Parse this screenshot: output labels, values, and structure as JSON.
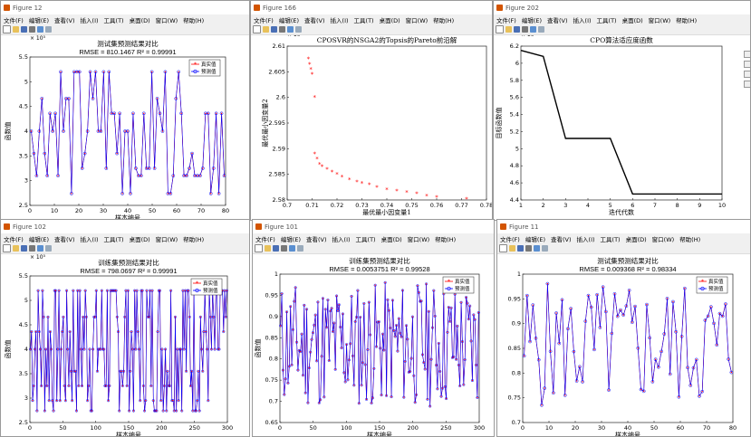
{
  "windows": [
    {
      "id": "w1",
      "title": "Figure 12",
      "plot_title": "测试集预测结果对比",
      "plot_subtitle": "RMSE = 810.1467 R² = 0.99991",
      "xlabel": "样本编号",
      "ylabel": "函数值",
      "exponent": "× 10⁵",
      "legend": [
        "真实值",
        "预测值"
      ],
      "xticks": [
        "0",
        "10",
        "20",
        "30",
        "40",
        "50",
        "60",
        "70",
        "80"
      ],
      "yticks": [
        "2.5",
        "3",
        "3.5",
        "4",
        "4.5",
        "5",
        "5.5"
      ]
    },
    {
      "id": "w2",
      "title": "Figure 166",
      "plot_title": "CPOSVR的NSGA2的Topsis的Pareto前沿解",
      "xlabel": "最优最小因变量1",
      "ylabel": "最优最小因变量2",
      "exponent": "× 10⁵",
      "xticks": [
        "0.7",
        "0.71",
        "0.72",
        "0.73",
        "0.74",
        "0.75",
        "0.76",
        "0.77",
        "0.78"
      ],
      "yticks": [
        "2.58",
        "2.585",
        "2.59",
        "2.595",
        "2.6",
        "2.605",
        "2.61"
      ]
    },
    {
      "id": "w3",
      "title": "Figure 202",
      "plot_title": "CPO算法适应度函数",
      "xlabel": "迭代代数",
      "ylabel": "目标函数值",
      "exponent": "× 10⁻⁵",
      "xticks": [
        "1",
        "2",
        "3",
        "4",
        "5",
        "6",
        "7",
        "8",
        "9",
        "10"
      ],
      "yticks": [
        "4.4",
        "4.6",
        "4.8",
        "5",
        "5.2",
        "5.4",
        "5.6",
        "5.8",
        "6",
        "6.2"
      ]
    },
    {
      "id": "w4",
      "title": "Figure 102",
      "plot_title": "训练集预测结果对比",
      "plot_subtitle": "RMSE = 798.0697 R² = 0.99991",
      "xlabel": "样本编号",
      "ylabel": "函数值",
      "exponent": "× 10⁵",
      "legend": [
        "真实值",
        "预测值"
      ],
      "xticks": [
        "0",
        "50",
        "100",
        "150",
        "200",
        "250",
        "300"
      ],
      "yticks": [
        "2.5",
        "3",
        "3.5",
        "4",
        "4.5",
        "5",
        "5.5"
      ]
    },
    {
      "id": "w5",
      "title": "Figure 101",
      "plot_title": "训练集预测结果对比",
      "plot_subtitle": "RMSE = 0.0053751 R² = 0.99528",
      "xlabel": "样本编号",
      "ylabel": "函数值",
      "legend": [
        "真实值",
        "预测值"
      ],
      "xticks": [
        "0",
        "50",
        "100",
        "150",
        "200",
        "250",
        "300"
      ],
      "yticks": [
        "0.65",
        "0.7",
        "0.75",
        "0.8",
        "0.85",
        "0.9",
        "0.95",
        "1"
      ]
    },
    {
      "id": "w6",
      "title": "Figure 11",
      "plot_title": "测试集预测结果对比",
      "plot_subtitle": "RMSE = 0.009368 R² = 0.98334",
      "xlabel": "样本编号",
      "ylabel": "",
      "legend": [
        "真实值",
        "预测值"
      ],
      "xticks": [
        "0",
        "10",
        "20",
        "30",
        "40",
        "50",
        "60",
        "70",
        "80"
      ],
      "yticks": [
        "0.7",
        "0.75",
        "0.8",
        "0.85",
        "0.9",
        "0.95",
        "1"
      ]
    }
  ],
  "menu": [
    "文件(F)",
    "编辑(E)",
    "查看(V)",
    "插入(I)",
    "工具(T)",
    "桌面(D)",
    "窗口(W)",
    "帮助(H)"
  ],
  "colors": {
    "true_series": "#ff0000",
    "pred_series": "#0000ff",
    "fitness": "#000000",
    "pareto": "#ff0000"
  },
  "chart_data": [
    {
      "type": "line",
      "ref": "w1",
      "series": [
        {
          "name": "真实值"
        },
        {
          "name": "预测值"
        }
      ],
      "ylim": [
        250000,
        550000
      ],
      "xlim": [
        0,
        80
      ]
    },
    {
      "type": "scatter",
      "ref": "w2",
      "ylim": [
        258000,
        261000
      ],
      "xlim": [
        0.7,
        0.78
      ],
      "points": [
        [
          0.7085,
          260.75
        ],
        [
          0.709,
          260.65
        ],
        [
          0.7095,
          260.55
        ],
        [
          0.71,
          260.45
        ],
        [
          0.711,
          260.0
        ],
        [
          0.711,
          258.9
        ],
        [
          0.712,
          258.8
        ],
        [
          0.713,
          258.7
        ],
        [
          0.714,
          258.65
        ],
        [
          0.716,
          258.6
        ],
        [
          0.718,
          258.55
        ],
        [
          0.72,
          258.5
        ],
        [
          0.722,
          258.45
        ],
        [
          0.725,
          258.4
        ],
        [
          0.728,
          258.35
        ],
        [
          0.73,
          258.33
        ],
        [
          0.733,
          258.3
        ],
        [
          0.736,
          258.25
        ],
        [
          0.74,
          258.2
        ],
        [
          0.744,
          258.18
        ],
        [
          0.748,
          258.15
        ],
        [
          0.752,
          258.12
        ],
        [
          0.756,
          258.08
        ],
        [
          0.76,
          258.05
        ],
        [
          0.772,
          258.02
        ]
      ]
    },
    {
      "type": "line",
      "ref": "w3",
      "x": [
        1,
        2,
        3,
        4,
        5,
        6,
        7,
        8,
        9,
        10
      ],
      "y": [
        6.15,
        6.08,
        5.12,
        5.12,
        5.12,
        4.47,
        4.47,
        4.47,
        4.47,
        4.47
      ],
      "xlim": [
        1,
        10
      ],
      "ylim": [
        4.4,
        6.2
      ]
    },
    {
      "type": "line",
      "ref": "w4",
      "series": [
        {
          "name": "真实值"
        },
        {
          "name": "预测值"
        }
      ],
      "ylim": [
        250000,
        550000
      ],
      "xlim": [
        0,
        300
      ]
    },
    {
      "type": "line",
      "ref": "w5",
      "series": [
        {
          "name": "真实值"
        },
        {
          "name": "预测值"
        }
      ],
      "ylim": [
        0.65,
        1.0
      ],
      "xlim": [
        0,
        300
      ]
    },
    {
      "type": "line",
      "ref": "w6",
      "series": [
        {
          "name": "真实值"
        },
        {
          "name": "预测值"
        }
      ],
      "ylim": [
        0.7,
        1.0
      ],
      "xlim": [
        0,
        80
      ]
    }
  ]
}
